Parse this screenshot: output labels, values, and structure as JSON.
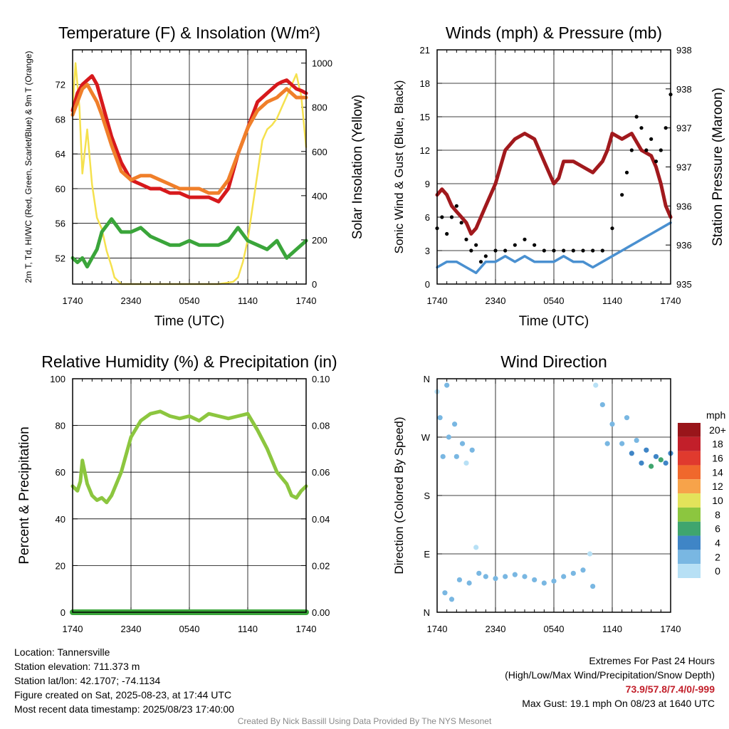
{
  "chart_data": [
    {
      "type": "line",
      "title": "Temperature (F) & Insolation (W/m²)",
      "xlabel": "Time (UTC)",
      "ylabel": "2m T, Td, HI/WC (Red, Green, Scarlet/Blue) & 9m T (Orange)",
      "y2label": "Solar Insolation (Yellow)",
      "x_ticks": [
        "1740",
        "2340",
        "0540",
        "1140",
        "1740"
      ],
      "y_ticks": [
        52,
        56,
        60,
        64,
        68,
        72
      ],
      "ylim": [
        49,
        76
      ],
      "y2_ticks": [
        0,
        200,
        400,
        600,
        800,
        1000
      ],
      "y2lim": [
        0,
        1060
      ],
      "grid": true,
      "series": [
        {
          "color": "#d7191c",
          "axis": "left",
          "x": [
            0,
            0.5,
            1,
            1.5,
            2,
            2.5,
            3,
            4,
            5,
            6,
            7,
            8,
            9,
            10,
            11,
            12,
            13,
            14,
            15,
            16,
            17,
            18,
            19,
            20,
            21,
            21.5,
            22,
            22.5,
            23,
            23.5,
            24
          ],
          "y": [
            69,
            71,
            72,
            72.5,
            73,
            72,
            70,
            66,
            63,
            61,
            60.5,
            60,
            60,
            59.5,
            59.5,
            59,
            59,
            59,
            58.5,
            60,
            64,
            67,
            70,
            71,
            72,
            72.3,
            72.5,
            72,
            71.5,
            71.3,
            71
          ]
        },
        {
          "color": "#f07f2a",
          "axis": "left",
          "x": [
            0,
            0.5,
            1,
            1.5,
            2,
            2.5,
            3,
            4,
            5,
            6,
            7,
            8,
            9,
            10,
            11,
            12,
            13,
            14,
            15,
            16,
            17,
            18,
            19,
            20,
            21,
            21.5,
            22,
            22.5,
            23,
            23.5,
            24
          ],
          "y": [
            68.5,
            70,
            71.5,
            72,
            71,
            70,
            68.5,
            65,
            62,
            61,
            61.5,
            61.5,
            61,
            60.5,
            60,
            60,
            60,
            59.5,
            59.5,
            61,
            64,
            67,
            69,
            70,
            70.5,
            71,
            71.5,
            71,
            70.5,
            70.5,
            70.5
          ]
        },
        {
          "color": "#3aa53a",
          "axis": "left",
          "x": [
            0,
            0.5,
            1,
            1.5,
            2,
            2.5,
            3,
            4,
            5,
            6,
            7,
            8,
            9,
            10,
            11,
            12,
            13,
            14,
            15,
            16,
            17,
            18,
            19,
            20,
            21,
            21.5,
            22,
            22.5,
            23,
            23.5,
            24
          ],
          "y": [
            52,
            51.5,
            52,
            51,
            52,
            53,
            55,
            56.5,
            55,
            55,
            55.5,
            54.5,
            54,
            53.5,
            53.5,
            54,
            53.5,
            53.5,
            53.5,
            54,
            55.5,
            54,
            53.5,
            53,
            54,
            53,
            52,
            52.5,
            53,
            53.5,
            54
          ]
        },
        {
          "color": "#f5e14e",
          "axis": "right",
          "x": [
            0,
            0.3,
            0.7,
            1,
            1.5,
            2,
            2.5,
            3,
            3.5,
            4,
            4.3,
            5,
            10,
            15,
            16.5,
            17,
            17.5,
            18,
            18.5,
            19,
            19.5,
            20,
            20.5,
            21,
            21.5,
            22,
            22.5,
            23,
            23.5,
            24
          ],
          "y": [
            800,
            1000,
            800,
            500,
            700,
            450,
            300,
            250,
            150,
            80,
            30,
            0,
            0,
            0,
            10,
            30,
            100,
            200,
            350,
            500,
            650,
            700,
            720,
            750,
            800,
            850,
            900,
            950,
            850,
            620
          ]
        }
      ]
    },
    {
      "type": "line",
      "title": "Winds (mph) & Pressure (mb)",
      "xlabel": "Time (UTC)",
      "ylabel": "Sonic Wind & Gust (Blue, Black)",
      "y2label": "Station Pressure (Maroon)",
      "x_ticks": [
        "1740",
        "2340",
        "0540",
        "1140",
        "1740"
      ],
      "y_ticks": [
        0,
        3,
        6,
        9,
        12,
        15,
        18,
        21
      ],
      "ylim": [
        0,
        21
      ],
      "y2_tick_labels": [
        "935",
        "936",
        "936",
        "937",
        "937",
        "938",
        "938"
      ],
      "grid": true,
      "series": [
        {
          "color": "#a1191d",
          "axis": "right",
          "x": [
            0,
            0.5,
            1,
            1.5,
            2,
            2.5,
            3,
            3.5,
            4,
            5,
            6,
            7,
            8,
            9,
            10,
            11,
            12,
            12.5,
            13,
            14,
            15,
            16,
            17,
            17.5,
            18,
            19,
            20,
            21,
            22,
            22.5,
            23,
            23.5,
            24
          ],
          "y": [
            8,
            8.5,
            8,
            7,
            6.5,
            6,
            5.5,
            4.5,
            5,
            7,
            9,
            12,
            13,
            13.5,
            13,
            11,
            9,
            9.5,
            11,
            11,
            10.5,
            10,
            11,
            12,
            13.5,
            13,
            13.5,
            12,
            11.5,
            10.5,
            9,
            7,
            6
          ]
        },
        {
          "color": "#4a90d0",
          "axis": "left",
          "x": [
            0,
            1,
            2,
            3,
            4,
            4.5,
            5,
            6,
            7,
            8,
            9,
            10,
            11,
            12,
            13,
            14,
            15,
            16,
            17,
            18,
            19,
            20,
            21,
            22,
            23,
            24
          ],
          "y": [
            1.5,
            2,
            2,
            1.5,
            1,
            1.5,
            2,
            2,
            2.5,
            2,
            2.5,
            2,
            2,
            2,
            2.5,
            2,
            2,
            1.5,
            2,
            2.5,
            3,
            3.5,
            4,
            4.5,
            5,
            5.5
          ]
        },
        {
          "color": "#000000",
          "axis": "left",
          "style": "points",
          "x": [
            0,
            0.5,
            1,
            1.5,
            2,
            2.5,
            3,
            3.5,
            4,
            4.5,
            5,
            6,
            7,
            8,
            9,
            10,
            11,
            12,
            13,
            14,
            15,
            16,
            17,
            18,
            19,
            19.5,
            20,
            20.5,
            21,
            21.5,
            22,
            22.5,
            23,
            23.5,
            24
          ],
          "y": [
            5,
            6,
            4.5,
            6,
            7,
            5.5,
            4,
            3,
            3.5,
            2,
            2.5,
            3,
            3,
            3.5,
            4,
            3.5,
            3,
            3,
            3,
            3,
            3,
            3,
            3,
            5,
            8,
            10,
            12,
            15,
            14,
            12,
            13,
            11,
            12,
            14,
            17
          ]
        }
      ]
    },
    {
      "type": "line",
      "title": "Relative Humidity (%) & Precipitation (in)",
      "ylabel": "Percent & Precipitation",
      "x_ticks": [
        "1740",
        "2340",
        "0540",
        "1140",
        "1740"
      ],
      "y_ticks": [
        0,
        20,
        40,
        60,
        80,
        100
      ],
      "ylim": [
        0,
        100
      ],
      "y2_tick_labels": [
        "0.00",
        "0.02",
        "0.04",
        "0.06",
        "0.08",
        "0.10"
      ],
      "y2lim": [
        0,
        0.1
      ],
      "grid": true,
      "series": [
        {
          "color": "#8cc63f",
          "axis": "left",
          "x": [
            0,
            0.5,
            0.8,
            1,
            1.5,
            2,
            2.5,
            3,
            3.5,
            4,
            5,
            6,
            7,
            8,
            9,
            10,
            11,
            12,
            13,
            14,
            15,
            16,
            17,
            18,
            19,
            20,
            21,
            22,
            22.5,
            23,
            23.5,
            24
          ],
          "y": [
            54,
            52,
            56,
            65,
            55,
            50,
            48,
            49,
            47,
            50,
            60,
            75,
            82,
            85,
            86,
            84,
            83,
            84,
            82,
            85,
            84,
            83,
            84,
            85,
            78,
            70,
            60,
            55,
            50,
            49,
            52,
            54
          ]
        },
        {
          "color": "#3aa53a",
          "axis": "right",
          "x": [
            0,
            24
          ],
          "y": [
            0,
            0
          ]
        }
      ]
    },
    {
      "type": "scatter",
      "title": "Wind Direction",
      "ylabel": "Direction (Colored By Speed)",
      "x_ticks": [
        "1740",
        "2340",
        "0540",
        "1140",
        "1740"
      ],
      "y_tick_labels": [
        "N",
        "E",
        "S",
        "W",
        "N"
      ],
      "ylim": [
        0,
        360
      ],
      "grid": true,
      "legend": {
        "title": "mph",
        "labels": [
          "20+",
          "18",
          "16",
          "14",
          "12",
          "10",
          "8",
          "6",
          "4",
          "2",
          "0"
        ],
        "colors": [
          "#99151a",
          "#c21f2a",
          "#e03a2e",
          "#f0682c",
          "#f7a34a",
          "#e3e35a",
          "#8cc63f",
          "#3fa56e",
          "#3f85c6",
          "#79b7e2",
          "#b7e0f5"
        ]
      },
      "points": [
        {
          "x": 0,
          "y": 340,
          "speed": 1
        },
        {
          "x": 0.3,
          "y": 300,
          "speed": 2
        },
        {
          "x": 0.6,
          "y": 240,
          "speed": 2
        },
        {
          "x": 0.8,
          "y": 30,
          "speed": 2
        },
        {
          "x": 1,
          "y": 350,
          "speed": 3
        },
        {
          "x": 1.2,
          "y": 270,
          "speed": 2
        },
        {
          "x": 1.5,
          "y": 20,
          "speed": 3
        },
        {
          "x": 1.8,
          "y": 290,
          "speed": 3
        },
        {
          "x": 2,
          "y": 240,
          "speed": 2
        },
        {
          "x": 2.3,
          "y": 50,
          "speed": 2
        },
        {
          "x": 2.6,
          "y": 260,
          "speed": 3
        },
        {
          "x": 3,
          "y": 230,
          "speed": 1
        },
        {
          "x": 3.3,
          "y": 45,
          "speed": 2
        },
        {
          "x": 3.6,
          "y": 250,
          "speed": 2
        },
        {
          "x": 4,
          "y": 100,
          "speed": 1
        },
        {
          "x": 4.3,
          "y": 60,
          "speed": 2
        },
        {
          "x": 5,
          "y": 55,
          "speed": 2
        },
        {
          "x": 6,
          "y": 52,
          "speed": 2
        },
        {
          "x": 7,
          "y": 55,
          "speed": 2
        },
        {
          "x": 8,
          "y": 58,
          "speed": 2
        },
        {
          "x": 9,
          "y": 55,
          "speed": 2
        },
        {
          "x": 10,
          "y": 50,
          "speed": 2
        },
        {
          "x": 11,
          "y": 45,
          "speed": 2
        },
        {
          "x": 12,
          "y": 48,
          "speed": 2
        },
        {
          "x": 13,
          "y": 55,
          "speed": 2
        },
        {
          "x": 14,
          "y": 60,
          "speed": 2
        },
        {
          "x": 15,
          "y": 65,
          "speed": 2
        },
        {
          "x": 15.7,
          "y": 90,
          "speed": 1
        },
        {
          "x": 16,
          "y": 40,
          "speed": 2
        },
        {
          "x": 16.3,
          "y": 350,
          "speed": 1
        },
        {
          "x": 17,
          "y": 320,
          "speed": 2
        },
        {
          "x": 17.5,
          "y": 260,
          "speed": 2
        },
        {
          "x": 18,
          "y": 290,
          "speed": 3
        },
        {
          "x": 19,
          "y": 260,
          "speed": 3
        },
        {
          "x": 19.5,
          "y": 300,
          "speed": 2
        },
        {
          "x": 20,
          "y": 245,
          "speed": 4
        },
        {
          "x": 20.5,
          "y": 265,
          "speed": 3
        },
        {
          "x": 21,
          "y": 230,
          "speed": 5
        },
        {
          "x": 21.5,
          "y": 250,
          "speed": 4
        },
        {
          "x": 22,
          "y": 225,
          "speed": 6
        },
        {
          "x": 22.5,
          "y": 240,
          "speed": 5
        },
        {
          "x": 23,
          "y": 235,
          "speed": 6
        },
        {
          "x": 23.5,
          "y": 230,
          "speed": 4
        },
        {
          "x": 24,
          "y": 245,
          "speed": 5
        }
      ]
    }
  ],
  "info": {
    "location": "Location: Tannersville",
    "elevation": "Station elevation: 711.373 m",
    "latlon": "Station lat/lon: 42.1707; -74.1134",
    "created": "Figure created on Sat, 2025-08-23, at 17:44 UTC",
    "recent": "Most recent data timestamp: 2025/08/23 17:40:00"
  },
  "extremes": {
    "heading": "Extremes For Past 24 Hours",
    "subheading": "(High/Low/Max Wind/Precipitation/Snow Depth)",
    "values": "73.9/57.8/7.4/0/-999",
    "gust": "Max Gust: 19.1 mph On 08/23 at 1640 UTC"
  },
  "credit": "Created By Nick Bassill Using Data Provided By The NYS Mesonet"
}
